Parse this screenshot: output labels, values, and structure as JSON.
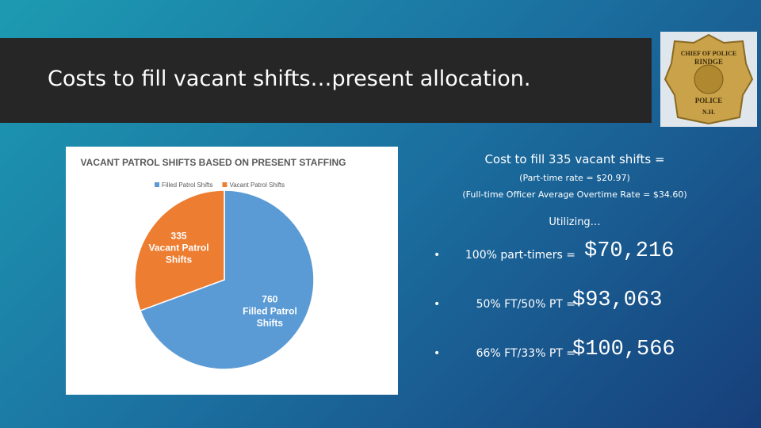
{
  "slide": {
    "title": "Costs to fill vacant shifts…present allocation.",
    "badge": {
      "top": "CHIEF OF POLICE",
      "town": "RINDGE",
      "bottom": "POLICE",
      "state": "N.H."
    },
    "cost_heading": "Cost to fill 335 vacant shifts =",
    "rates": [
      "(Part-time rate = $20.97)",
      "(Full-time Officer Average Overtime Rate = $34.60)"
    ],
    "utilizing": "Utilizing…",
    "options": [
      {
        "label": "100% part-timers =",
        "amount": "$70,216"
      },
      {
        "label": "50% FT/50% PT =",
        "amount": "$93,063"
      },
      {
        "label": "66% FT/33% PT =",
        "amount": "$100,566"
      }
    ]
  },
  "chart_data": {
    "type": "pie",
    "title": "VACANT PATROL SHIFTS BASED ON PRESENT STAFFING",
    "categories": [
      "Filled Patrol Shifts",
      "Vacant Patrol Shifts"
    ],
    "values": [
      760,
      335
    ],
    "colors": [
      "#5b9bd5",
      "#ed7d31"
    ],
    "legend": "top"
  }
}
